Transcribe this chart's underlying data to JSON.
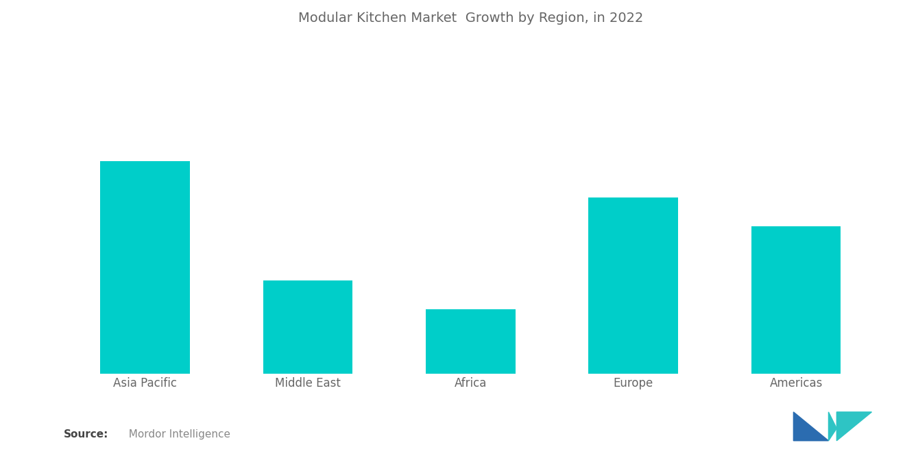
{
  "title": "Modular Kitchen Market  Growth by Region, in 2022",
  "categories": [
    "Asia Pacific",
    "Middle East",
    "Africa",
    "Europe",
    "Americas"
  ],
  "values": [
    82,
    36,
    25,
    68,
    57
  ],
  "bar_color": "#00CEC9",
  "background_color": "#FFFFFF",
  "title_color": "#666666",
  "xlabel_color": "#666666",
  "source_bold": "Source:",
  "source_text": "  Mordor Intelligence",
  "source_color": "#888888",
  "ylim": [
    0,
    130
  ],
  "bar_width": 0.55,
  "title_fontsize": 14,
  "xlabel_fontsize": 12,
  "source_fontsize": 11,
  "logo_color_left": "#2B6CB0",
  "logo_color_right": "#2EC4C4"
}
